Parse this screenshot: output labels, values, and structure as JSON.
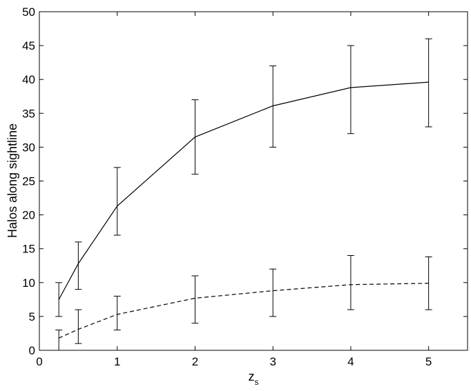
{
  "chart_data": {
    "type": "line",
    "title": "",
    "xlabel": "z",
    "xlabel_sub": "s",
    "ylabel": "Halos along sightline",
    "xlim": [
      0,
      5.5
    ],
    "ylim": [
      0,
      50
    ],
    "xticks": [
      0,
      1,
      2,
      3,
      4,
      5
    ],
    "yticks": [
      0,
      5,
      10,
      15,
      20,
      25,
      30,
      35,
      40,
      45,
      50
    ],
    "grid": false,
    "legend": "none",
    "series": [
      {
        "style": "solid",
        "color": "#000000",
        "x": [
          0.25,
          0.5,
          1,
          2,
          3,
          4,
          5
        ],
        "y": [
          7.5,
          12.8,
          21.3,
          31.5,
          36.1,
          38.8,
          39.6
        ],
        "err_low": [
          5,
          9,
          17,
          26,
          30,
          32,
          33
        ],
        "err_high": [
          10,
          16,
          27,
          37,
          42,
          45,
          46
        ]
      },
      {
        "style": "dashed",
        "color": "#000000",
        "x": [
          0.25,
          0.5,
          1,
          2,
          3,
          4,
          5
        ],
        "y": [
          1.8,
          3.1,
          5.3,
          7.7,
          8.8,
          9.7,
          9.9
        ],
        "err_low": [
          0,
          1,
          3,
          4,
          5,
          6,
          6
        ],
        "err_high": [
          3,
          6,
          8,
          11,
          12,
          14,
          13.8
        ]
      }
    ]
  }
}
